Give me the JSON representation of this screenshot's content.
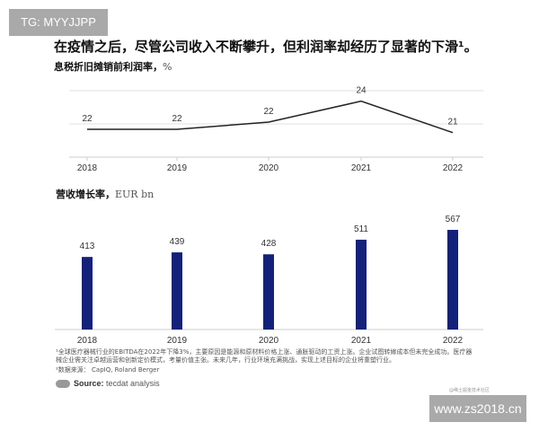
{
  "watermarks": {
    "top_left": "TG: MYYJJPP",
    "bottom_right": "www.zs2018.cn",
    "small": "@稀土掘金技术社区"
  },
  "title": "在疫情之后，尽管公司收入不断攀升，但利润率却经历了显著的下滑¹。",
  "chart_data": [
    {
      "type": "line",
      "title": "息税折旧摊销前利润率，",
      "unit": "%",
      "categories": [
        "2018",
        "2019",
        "2020",
        "2021",
        "2022"
      ],
      "values": [
        22,
        22,
        22,
        24,
        21
      ],
      "color": "#222222",
      "grid": true
    },
    {
      "type": "bar",
      "title": "营收增长率，",
      "unit": "EUR bn",
      "categories": [
        "2018",
        "2019",
        "2020",
        "2021",
        "2022"
      ],
      "values": [
        413,
        439,
        428,
        511,
        567
      ],
      "color": "#14217a",
      "ylim": [
        0,
        600
      ]
    }
  ],
  "footnotes": [
    "¹全球医疗器械行业的EBITDA在2022年下降3%，主要原因是能源和原材料价格上涨、通胀驱动的工资上涨。企业试图转嫁成本但未完全成功。医疗器械企业需关注卓越运营和创新定价模式，考量价值主张。未来几年，行业环境充满挑战，实现上述目标的企业将重塑行业。",
    "²数据来源： CapIQ, Roland Berger"
  ],
  "source": {
    "label": "Source:",
    "text": "tecdat analysis"
  }
}
